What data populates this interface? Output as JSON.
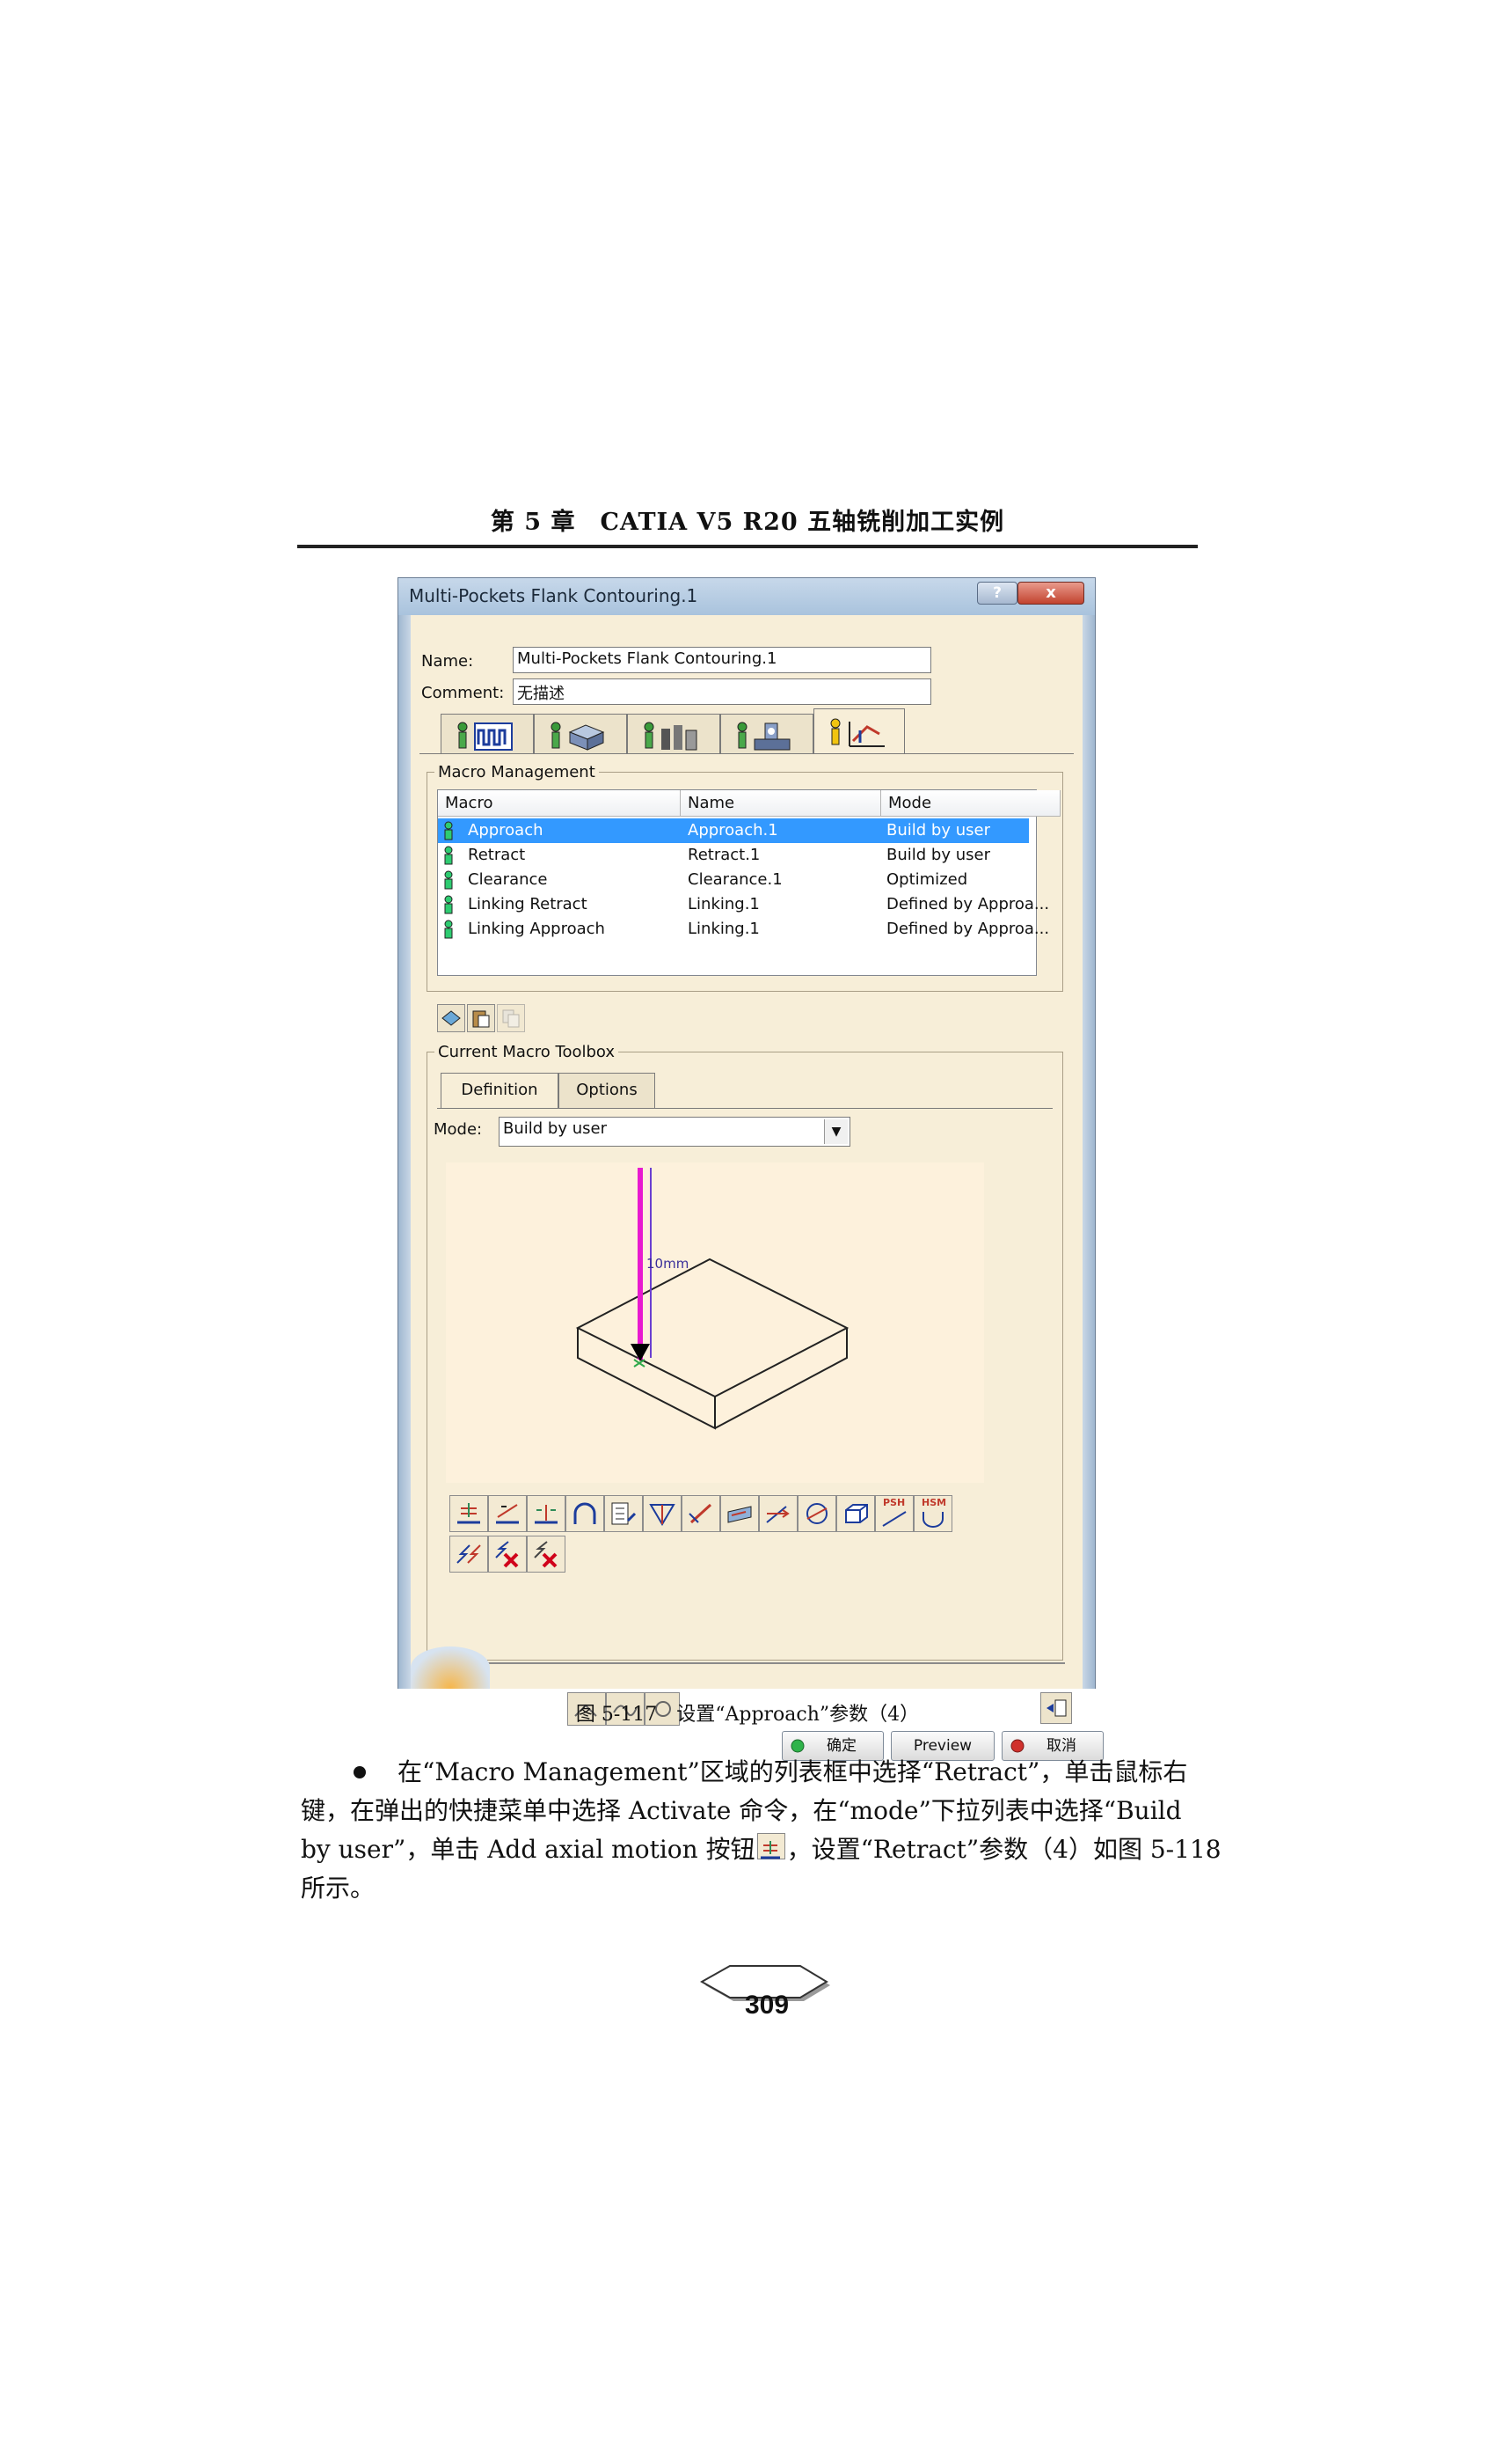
{
  "page_header": "第 5 章　CATIA V5 R20 五轴铣削加工实例",
  "dialog": {
    "title": "Multi-Pockets Flank Contouring.1",
    "help_label": "?",
    "close_label": "x",
    "name_label": "Name:",
    "name_value": "Multi-Pockets Flank Contouring.1",
    "comment_label": "Comment:",
    "comment_value": "无描述",
    "tabs": [
      {
        "icon": "strategy-tab-icon"
      },
      {
        "icon": "geometry-tab-icon"
      },
      {
        "icon": "tool-tab-icon"
      },
      {
        "icon": "feeds-speeds-tab-icon"
      },
      {
        "icon": "macros-tab-icon",
        "active": true
      }
    ],
    "macro_management": {
      "legend": "Macro Management",
      "columns": [
        "Macro",
        "Name",
        "Mode"
      ],
      "rows": [
        {
          "macro": "Approach",
          "name": "Approach.1",
          "mode": "Build by user",
          "selected": true
        },
        {
          "macro": "Retract",
          "name": "Retract.1",
          "mode": "Build by user"
        },
        {
          "macro": "Clearance",
          "name": "Clearance.1",
          "mode": "Optimized"
        },
        {
          "macro": "Linking Retract",
          "name": "Linking.1",
          "mode": "Defined by Approa..."
        },
        {
          "macro": "Linking Approach",
          "name": "Linking.1",
          "mode": "Defined by Approa..."
        }
      ]
    },
    "current_macro": {
      "legend": "Current Macro Toolbox",
      "tabs": [
        "Definition",
        "Options"
      ],
      "mode_label": "Mode:",
      "mode_value": "Build by user",
      "distance_label": "10mm"
    },
    "motion_tools_row1": [
      "add-axial-motion-icon",
      "add-tangent-motion-icon",
      "add-normal-motion-icon",
      "add-circular-motion-icon",
      "add-ramping-motion-icon",
      "add-goto-point-icon",
      "add-motion-perpendicular-icon",
      "add-motion-to-plane-icon",
      "add-motion-to-line-icon",
      "add-circular-arc-icon",
      "add-box-motion-icon",
      "psh-icon",
      "hsm-icon"
    ],
    "psh_label": "PSH",
    "hsm_label": "HSM",
    "motion_tools_row2": [
      "copy-motion-icon",
      "remove-motion-icon",
      "remove-all-motions-icon"
    ],
    "ok_label": "确定",
    "preview_label": "Preview",
    "cancel_label": "取消"
  },
  "caption": "图 5-117　设置“Approach”参数（4）",
  "body": {
    "line1": "在“Macro Management”区域的列表框中选择“Retract”，单击鼠标右",
    "line2": "键，在弹出的快捷菜单中选择 Activate 命令，在“mode”下拉列表中选择“Build",
    "line3a": "by user”，单击 Add axial motion 按钮",
    "line3b": "，设置“Retract”参数（4）如图 5-118",
    "line4": "所示。"
  },
  "page_number": "309"
}
